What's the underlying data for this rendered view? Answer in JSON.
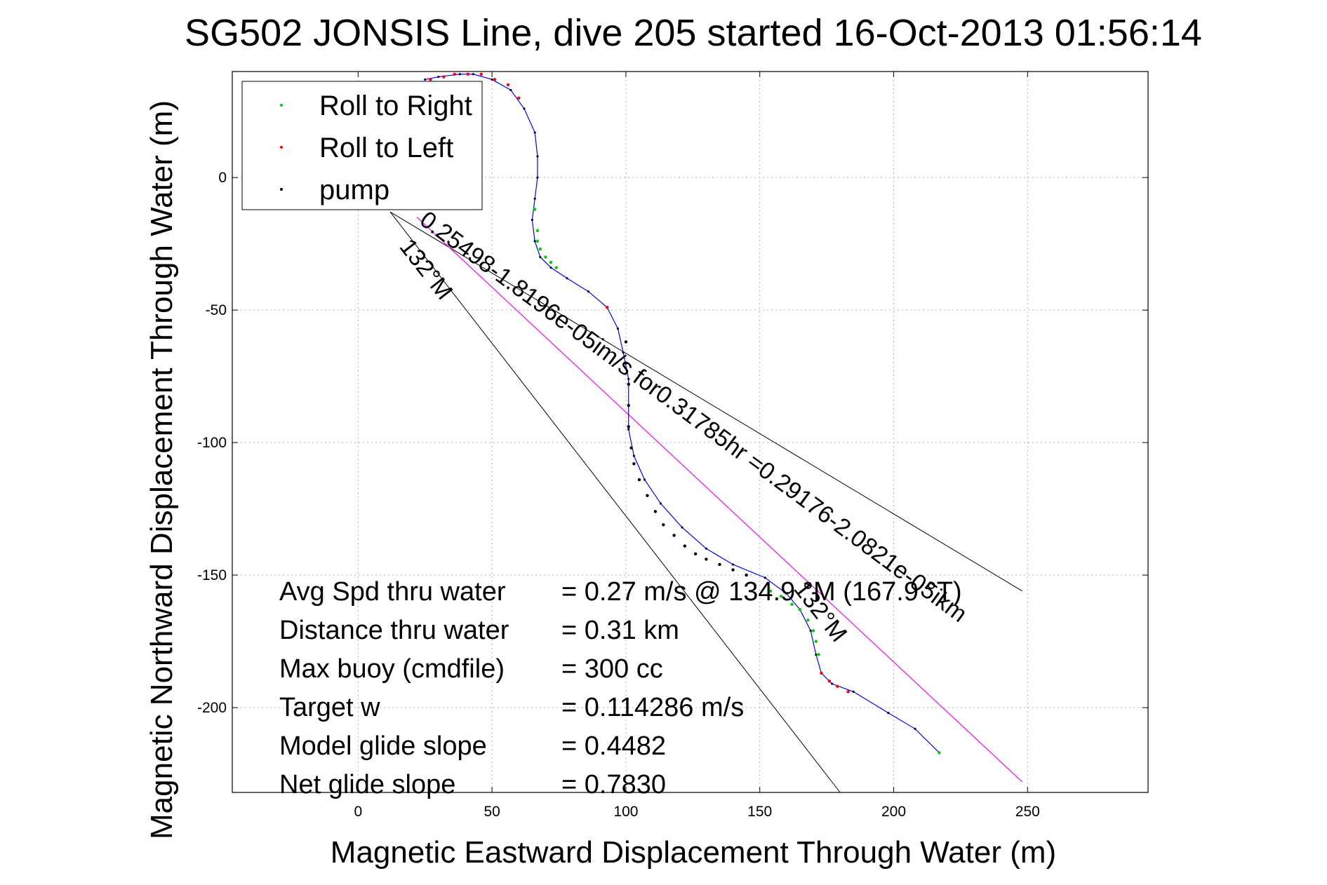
{
  "chart_data": {
    "type": "line",
    "title": "SG502 JONSIS Line, dive 205 started 16-Oct-2013 01:56:14",
    "xlabel": "Magnetic Eastward Displacement Through Water (m)",
    "ylabel": "Magnetic Northward Displacement Through Water (m)",
    "xlim": [
      -47,
      295
    ],
    "ylim": [
      -232,
      40
    ],
    "xticks": [
      0,
      50,
      100,
      150,
      200,
      250
    ],
    "yticks": [
      0,
      -50,
      -100,
      -150,
      -200
    ],
    "xtick_labels": [
      "0",
      "50",
      "100",
      "150",
      "200",
      "250"
    ],
    "ytick_labels": [
      "0",
      "-50",
      "-100",
      "-150",
      "-200"
    ],
    "grid": true,
    "legend_position": "top-left",
    "legend": [
      {
        "label": "Roll to Right",
        "color": "#00cc00",
        "marker": "dot"
      },
      {
        "label": "Roll to Left",
        "color": "#ff0000",
        "marker": "dot"
      },
      {
        "label": "pump",
        "color": "#000000",
        "marker": "dot"
      }
    ],
    "track_color": "#0000ff",
    "track": {
      "x": [
        25,
        30,
        38,
        43,
        50,
        57,
        62,
        66,
        67,
        67,
        66,
        65,
        66,
        68,
        72,
        78,
        86,
        93,
        97,
        99,
        101,
        101,
        101,
        103,
        107,
        113,
        121,
        130,
        140,
        152,
        160,
        165,
        169,
        171,
        173,
        177,
        185,
        198,
        208,
        217
      ],
      "y": [
        37,
        38,
        39,
        39,
        37,
        33,
        26,
        17,
        8,
        0,
        -8,
        -16,
        -24,
        -30,
        -34,
        -38,
        -43,
        -49,
        -57,
        -66,
        -76,
        -86,
        -95,
        -105,
        -114,
        -123,
        -132,
        -140,
        -146,
        -151,
        -157,
        -163,
        -171,
        -180,
        -187,
        -191,
        -194,
        -202,
        -208,
        -217
      ]
    },
    "roll_right_x": [
      66,
      67,
      67,
      68,
      70,
      72,
      74,
      154,
      158,
      162,
      165,
      168,
      170,
      171,
      172,
      217
    ],
    "roll_right_y": [
      -12,
      -20,
      -24,
      -27,
      -30,
      -32,
      -34,
      -156,
      -158,
      -161,
      -163,
      -167,
      -171,
      -175,
      -180,
      -217
    ],
    "roll_left_x": [
      27,
      32,
      36,
      41,
      46,
      51,
      56,
      60,
      93,
      173,
      176,
      179,
      183
    ],
    "roll_left_y": [
      37,
      38,
      39,
      39,
      39,
      37,
      35,
      30,
      -49,
      -187,
      -190,
      -192,
      -194
    ],
    "pump_x": [
      100,
      100,
      101,
      101,
      101,
      102,
      103,
      105,
      108,
      111,
      114,
      118,
      122,
      126,
      130,
      135,
      140,
      145
    ],
    "pump_y": [
      -62,
      -70,
      -78,
      -86,
      -94,
      -102,
      -108,
      -114,
      -120,
      -126,
      -131,
      -135,
      -139,
      -142,
      -144,
      -146,
      -148,
      -150
    ],
    "fit_line": {
      "x": [
        22,
        248
      ],
      "y": [
        -15,
        -228
      ],
      "color": "#ff00ff"
    },
    "heading_lines": [
      {
        "label": "132°M",
        "x": [
          12,
          180
        ],
        "y": [
          -13,
          -232
        ]
      },
      {
        "label": "132°M",
        "x": [
          12,
          248
        ],
        "y": [
          -13,
          -156
        ]
      }
    ],
    "line_annotation": "0.25498-1.8196e-05im/s for0.31785hr =0.29176-2.0821e-05ikm",
    "stats": [
      {
        "label": "Avg Spd thru water",
        "value": "=  0.27 m/s @ 134.9 °M (167.9 °T)"
      },
      {
        "label": "Distance thru water",
        "value": "=  0.31 km"
      },
      {
        "label": "Max buoy (cmdfile)",
        "value": "= 300 cc"
      },
      {
        "label": "Target w",
        "value": "= 0.114286 m/s"
      },
      {
        "label": "Model glide slope",
        "value": "= 0.4482"
      },
      {
        "label": "Net glide slope",
        "value": "= 0.7830"
      }
    ]
  }
}
